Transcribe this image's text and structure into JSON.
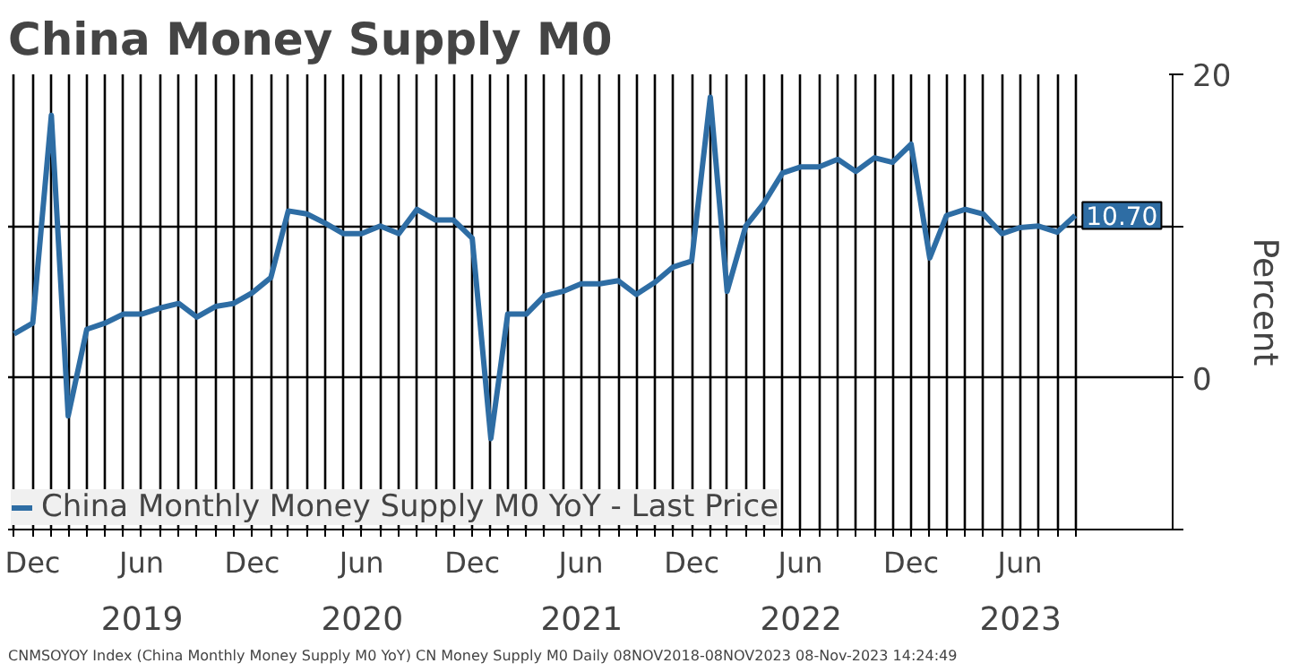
{
  "chart_data": {
    "type": "line",
    "title": "China Money Supply M0",
    "ylabel": "Percent",
    "x": [
      "2018-11-30",
      "2018-12-31",
      "2019-01-31",
      "2019-02-28",
      "2019-03-31",
      "2019-04-30",
      "2019-05-31",
      "2019-06-30",
      "2019-07-31",
      "2019-08-31",
      "2019-09-30",
      "2019-10-31",
      "2019-11-30",
      "2019-12-31",
      "2020-01-31",
      "2020-02-29",
      "2020-03-31",
      "2020-04-30",
      "2020-05-31",
      "2020-06-30",
      "2020-07-31",
      "2020-08-31",
      "2020-09-30",
      "2020-10-31",
      "2020-11-30",
      "2020-12-31",
      "2021-01-31",
      "2021-02-28",
      "2021-03-31",
      "2021-04-30",
      "2021-05-31",
      "2021-06-30",
      "2021-07-31",
      "2021-08-31",
      "2021-09-30",
      "2021-10-31",
      "2021-11-30",
      "2021-12-31",
      "2022-01-31",
      "2022-02-28",
      "2022-03-31",
      "2022-04-30",
      "2022-05-31",
      "2022-06-30",
      "2022-07-31",
      "2022-08-31",
      "2022-09-30",
      "2022-10-31",
      "2022-11-30",
      "2022-12-31",
      "2023-01-31",
      "2023-02-28",
      "2023-03-31",
      "2023-04-30",
      "2023-05-31",
      "2023-06-30",
      "2023-07-31",
      "2023-08-31",
      "2023-09-30"
    ],
    "series": [
      {
        "name": "China Monthly Money Supply M0 YoY - Last Price",
        "color": "#2e6da4",
        "values": [
          2.9,
          3.6,
          17.3,
          -2.5,
          3.2,
          3.6,
          4.2,
          4.2,
          4.6,
          4.9,
          4.0,
          4.7,
          4.9,
          5.6,
          6.6,
          11.0,
          10.8,
          10.2,
          9.5,
          9.5,
          10.0,
          9.5,
          11.1,
          10.4,
          10.4,
          9.2,
          -4.0,
          4.2,
          4.2,
          5.4,
          5.7,
          6.2,
          6.2,
          6.4,
          5.5,
          6.3,
          7.3,
          7.7,
          18.5,
          5.7,
          10.0,
          11.5,
          13.5,
          13.9,
          13.9,
          14.4,
          13.6,
          14.5,
          14.2,
          15.4,
          7.9,
          10.7,
          11.1,
          10.8,
          9.5,
          9.9,
          10.0,
          9.6,
          10.7
        ]
      }
    ],
    "xlim": [
      "2018-11-20",
      "2024-03-10"
    ],
    "x2lim": [
      "2018-11-20",
      "2024-03-10"
    ],
    "ylim": [
      -10,
      20
    ],
    "yticks": [
      {
        "value": -10,
        "label": null
      },
      0,
      {
        "value": 10,
        "label": null
      },
      20
    ],
    "xticks": [
      {
        "value": "2018-11-30",
        "label": null
      },
      {
        "value": "2018-12-31",
        "label": "Dec"
      },
      {
        "value": "2019-01-31",
        "label": null
      },
      {
        "value": "2019-02-28",
        "label": null
      },
      {
        "value": "2019-03-31",
        "label": null
      },
      {
        "value": "2019-04-30",
        "label": null
      },
      {
        "value": "2019-05-31",
        "label": null
      },
      {
        "value": "2019-06-30",
        "label": "Jun"
      },
      {
        "value": "2019-07-31",
        "label": null
      },
      {
        "value": "2019-08-31",
        "label": null
      },
      {
        "value": "2019-09-30",
        "label": null
      },
      {
        "value": "2019-10-31",
        "label": null
      },
      {
        "value": "2019-11-30",
        "label": null
      },
      {
        "value": "2019-12-31",
        "label": "Dec"
      },
      {
        "value": "2020-01-31",
        "label": null
      },
      {
        "value": "2020-02-29",
        "label": null
      },
      {
        "value": "2020-03-31",
        "label": null
      },
      {
        "value": "2020-04-30",
        "label": null
      },
      {
        "value": "2020-05-31",
        "label": null
      },
      {
        "value": "2020-06-30",
        "label": "Jun"
      },
      {
        "value": "2020-07-31",
        "label": null
      },
      {
        "value": "2020-08-31",
        "label": null
      },
      {
        "value": "2020-09-30",
        "label": null
      },
      {
        "value": "2020-10-31",
        "label": null
      },
      {
        "value": "2020-11-30",
        "label": null
      },
      {
        "value": "2020-12-31",
        "label": "Dec"
      },
      {
        "value": "2021-01-31",
        "label": null
      },
      {
        "value": "2021-02-28",
        "label": null
      },
      {
        "value": "2021-03-31",
        "label": null
      },
      {
        "value": "2021-04-30",
        "label": null
      },
      {
        "value": "2021-05-31",
        "label": null
      },
      {
        "value": "2021-06-30",
        "label": "Jun"
      },
      {
        "value": "2021-07-31",
        "label": null
      },
      {
        "value": "2021-08-31",
        "label": null
      },
      {
        "value": "2021-09-30",
        "label": null
      },
      {
        "value": "2021-10-31",
        "label": null
      },
      {
        "value": "2021-11-30",
        "label": null
      },
      {
        "value": "2021-12-31",
        "label": "Dec"
      },
      {
        "value": "2022-01-31",
        "label": null
      },
      {
        "value": "2022-02-28",
        "label": null
      },
      {
        "value": "2022-03-31",
        "label": null
      },
      {
        "value": "2022-04-30",
        "label": null
      },
      {
        "value": "2022-05-31",
        "label": null
      },
      {
        "value": "2022-06-30",
        "label": "Jun"
      },
      {
        "value": "2022-07-31",
        "label": null
      },
      {
        "value": "2022-08-31",
        "label": null
      },
      {
        "value": "2022-09-30",
        "label": null
      },
      {
        "value": "2022-10-31",
        "label": null
      },
      {
        "value": "2022-11-30",
        "label": null
      },
      {
        "value": "2022-12-31",
        "label": "Dec"
      },
      {
        "value": "2023-01-31",
        "label": null
      },
      {
        "value": "2023-02-28",
        "label": null
      },
      {
        "value": "2023-03-31",
        "label": null
      },
      {
        "value": "2023-04-30",
        "label": null
      },
      {
        "value": "2023-05-31",
        "label": null
      },
      {
        "value": "2023-06-30",
        "label": "Jun"
      },
      {
        "value": "2023-07-31",
        "label": null
      },
      {
        "value": "2023-08-31",
        "label": null
      },
      {
        "value": "2023-09-30",
        "label": null
      }
    ],
    "x2ticks": [
      {
        "value": "2019-07-01",
        "label": "2019"
      },
      {
        "value": "2020-07-01",
        "label": "2020"
      },
      {
        "value": "2021-07-01",
        "label": "2021"
      },
      {
        "value": "2022-07-01",
        "label": "2022"
      },
      {
        "value": "2023-07-01",
        "label": "2023"
      }
    ],
    "grid": true,
    "legend": "bottom left",
    "marker": "none",
    "line_style": "solid",
    "annotations": [
      {
        "text": "10.70",
        "x": "2023-09-30",
        "y": 10.7
      },
      "CNMSOYOY Index (China Monthly Money Supply M0 YoY) CN Money Supply M0  Daily 08NOV2018-08NOV2023  08-Nov-2023 14:24:49"
    ]
  }
}
